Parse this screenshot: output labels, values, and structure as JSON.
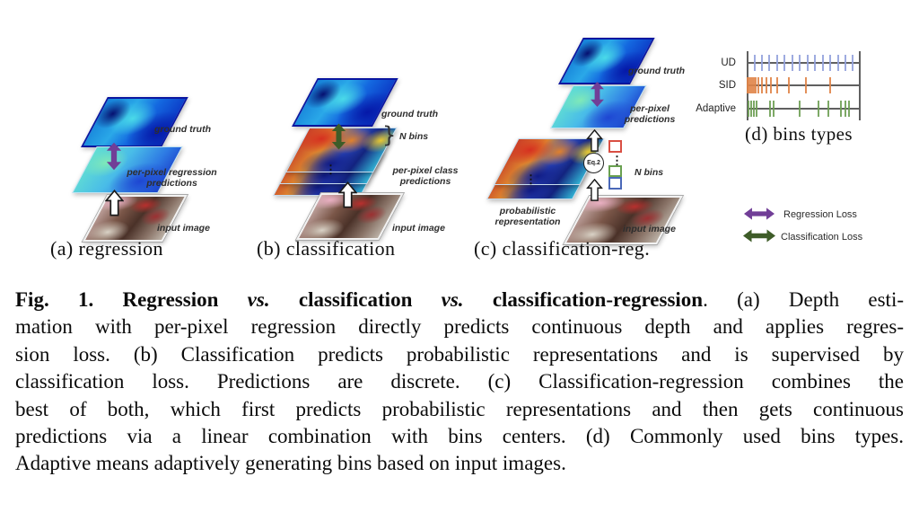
{
  "panels": {
    "a": {
      "caption": "(a) regression",
      "ground_truth_label": "ground truth",
      "prediction_label_line1": "per-pixel regression",
      "prediction_label_line2": "predictions",
      "input_label": "input image"
    },
    "b": {
      "caption": "(b) classification",
      "ground_truth_label": "ground truth",
      "brace": "}",
      "n_bins_label": "N bins",
      "dots": "⋮",
      "prediction_label_line1": "per-pixel class",
      "prediction_label_line2": "predictions",
      "input_label": "input image"
    },
    "c": {
      "caption": "(c) classification-reg.",
      "ground_truth_label": "ground truth",
      "prediction_label_line1": "per-pixel",
      "prediction_label_line2": "predictions",
      "eq_label": "Eq.2",
      "n_bins_label": "N bins",
      "dots": "⋮",
      "prob_label_line1": "probabilistic",
      "prob_label_line2": "representation",
      "input_label": "input image",
      "bin_square_colors": {
        "top": "#d94f43",
        "middle": "#69a050",
        "bottom": "#4a68b8"
      }
    },
    "d": {
      "caption": "(d) bins types",
      "rows": [
        {
          "label": "UD",
          "color": "#93a2dd",
          "ticks": [
            0.067,
            0.133,
            0.2,
            0.267,
            0.333,
            0.4,
            0.467,
            0.533,
            0.6,
            0.667,
            0.733,
            0.8,
            0.867,
            0.933
          ]
        },
        {
          "label": "SID",
          "color": "#e08448",
          "ticks": [
            0.008,
            0.018,
            0.03,
            0.044,
            0.06,
            0.08,
            0.105,
            0.135,
            0.17,
            0.215,
            0.27,
            0.37,
            0.52,
            0.73
          ]
        },
        {
          "label": "Adaptive",
          "color": "#6fa055",
          "ticks": [
            0.013,
            0.04,
            0.065,
            0.088,
            0.205,
            0.24,
            0.465,
            0.63,
            0.715,
            0.83,
            0.865,
            0.9
          ]
        }
      ]
    }
  },
  "legend": {
    "items": [
      {
        "label": "Regression Loss",
        "color": "#713e97"
      },
      {
        "label": "Classification Loss",
        "color": "#3e5c28"
      }
    ]
  },
  "figure_caption": {
    "lines": [
      [
        {
          "t": "Fig. 1. Regression ",
          "b": true
        },
        {
          "t": "vs.",
          "b": true,
          "i": true
        },
        {
          "t": " classification ",
          "b": true
        },
        {
          "t": "vs.",
          "b": true,
          "i": true
        },
        {
          "t": " classification-regression",
          "b": true
        },
        {
          "t": ". (a) Depth esti-"
        }
      ],
      [
        {
          "t": "mation with per-pixel regression directly predicts continuous depth and applies regres-"
        }
      ],
      [
        {
          "t": "sion loss. (b) Classification predicts probabilistic representations and is supervised by"
        }
      ],
      [
        {
          "t": "classification loss. Predictions are discrete. (c) Classification-regression combines the"
        }
      ],
      [
        {
          "t": "best of both, which first predicts probabilistic representations and then gets continuous"
        }
      ],
      [
        {
          "t": "predictions via a linear combination with bins centers. (d) Commonly used bins types."
        }
      ],
      [
        {
          "t": "Adaptive means adaptively generating bins based on input images."
        }
      ]
    ]
  }
}
